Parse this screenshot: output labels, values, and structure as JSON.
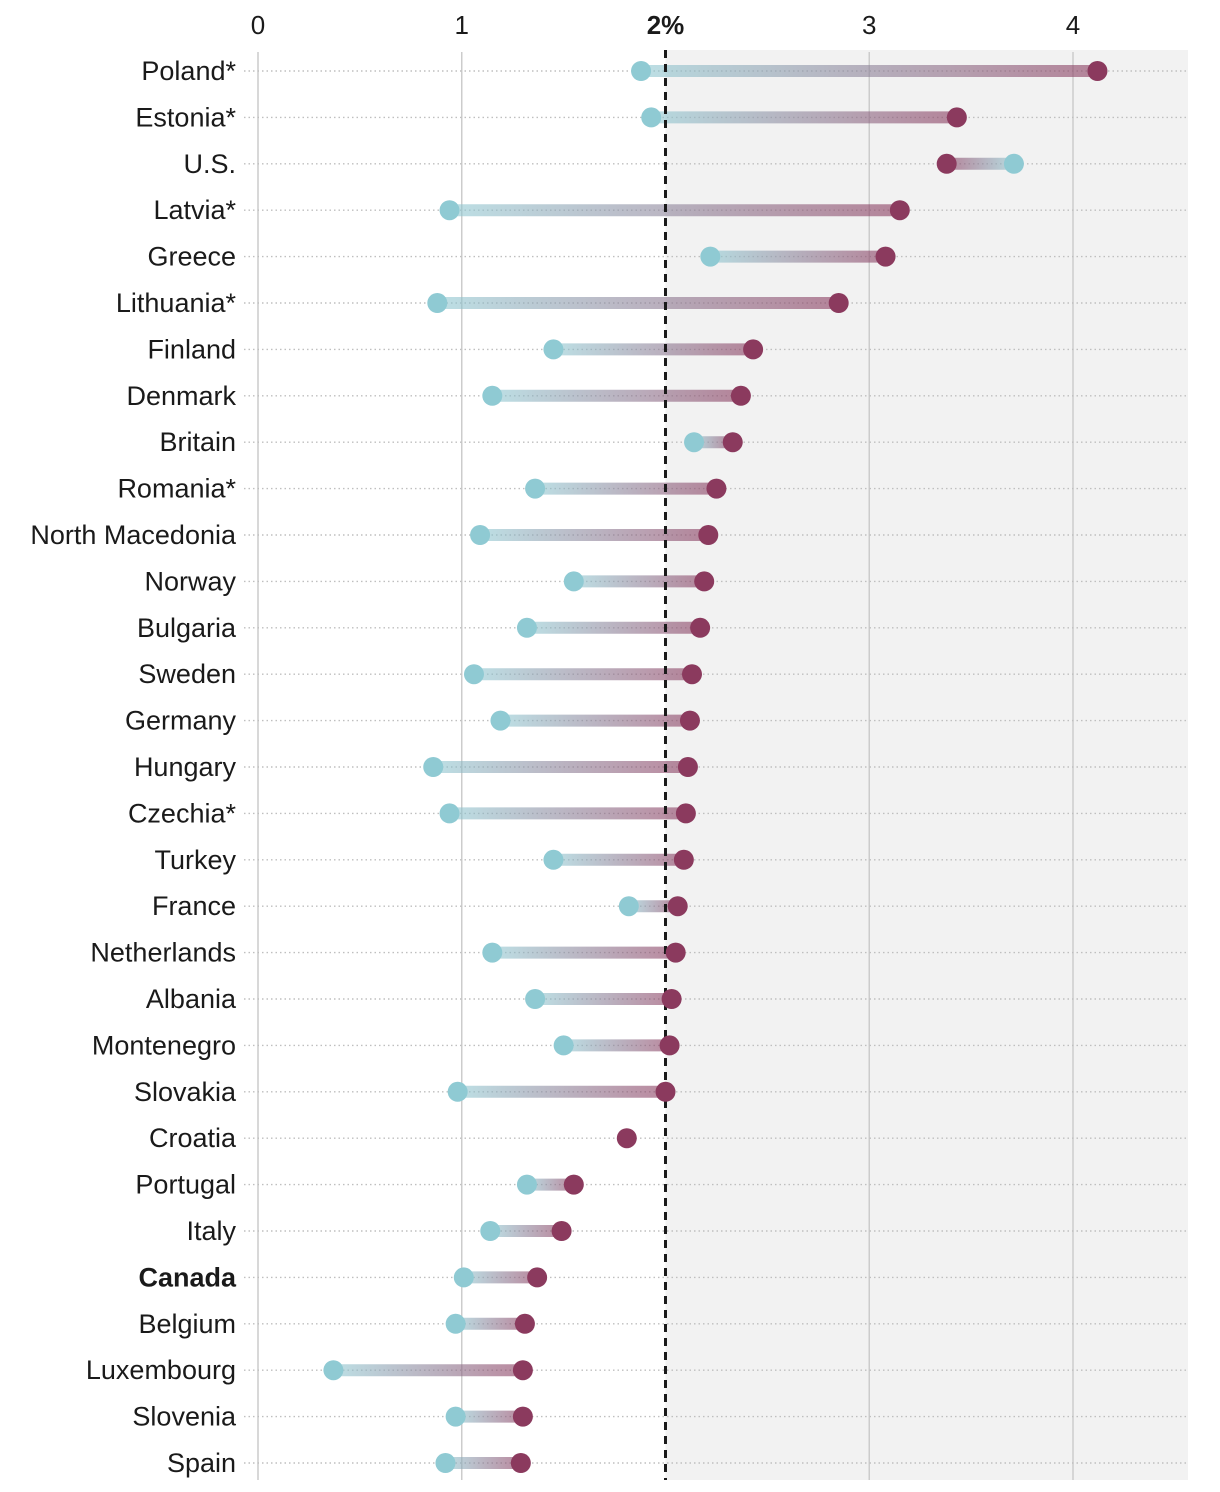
{
  "chart_data": {
    "type": "dumbbell",
    "xlim": [
      0,
      4.55
    ],
    "ticks": [
      {
        "value": 0,
        "label": "0",
        "bold": false
      },
      {
        "value": 1,
        "label": "1",
        "bold": false
      },
      {
        "value": 2,
        "label": "2%",
        "bold": true
      },
      {
        "value": 3,
        "label": "3",
        "bold": false
      },
      {
        "value": 4,
        "label": "4",
        "bold": false
      }
    ],
    "threshold": 2,
    "colors": {
      "start": "#8fcad3",
      "end": "#8b3a5e",
      "shade": "#f2f2f2",
      "grid": "#cccccc",
      "dotted": "#bfbfbf",
      "threshold": "#1a1a1a"
    },
    "series": [
      {
        "name": "start",
        "color": "#8fcad3"
      },
      {
        "name": "end",
        "color": "#8b3a5e"
      }
    ],
    "countries": [
      {
        "name": "Poland*",
        "start": 1.88,
        "end": 4.12,
        "bold": false
      },
      {
        "name": "Estonia*",
        "start": 1.93,
        "end": 3.43,
        "bold": false
      },
      {
        "name": "U.S.",
        "start": 3.71,
        "end": 3.38,
        "bold": false
      },
      {
        "name": "Latvia*",
        "start": 0.94,
        "end": 3.15,
        "bold": false
      },
      {
        "name": "Greece",
        "start": 2.22,
        "end": 3.08,
        "bold": false
      },
      {
        "name": "Lithuania*",
        "start": 0.88,
        "end": 2.85,
        "bold": false
      },
      {
        "name": "Finland",
        "start": 1.45,
        "end": 2.43,
        "bold": false
      },
      {
        "name": "Denmark",
        "start": 1.15,
        "end": 2.37,
        "bold": false
      },
      {
        "name": "Britain",
        "start": 2.14,
        "end": 2.33,
        "bold": false
      },
      {
        "name": "Romania*",
        "start": 1.36,
        "end": 2.25,
        "bold": false
      },
      {
        "name": "North Macedonia",
        "start": 1.09,
        "end": 2.21,
        "bold": false
      },
      {
        "name": "Norway",
        "start": 1.55,
        "end": 2.19,
        "bold": false
      },
      {
        "name": "Bulgaria",
        "start": 1.32,
        "end": 2.17,
        "bold": false
      },
      {
        "name": "Sweden",
        "start": 1.06,
        "end": 2.13,
        "bold": false
      },
      {
        "name": "Germany",
        "start": 1.19,
        "end": 2.12,
        "bold": false
      },
      {
        "name": "Hungary",
        "start": 0.86,
        "end": 2.11,
        "bold": false
      },
      {
        "name": "Czechia*",
        "start": 0.94,
        "end": 2.1,
        "bold": false
      },
      {
        "name": "Turkey",
        "start": 1.45,
        "end": 2.09,
        "bold": false
      },
      {
        "name": "France",
        "start": 1.82,
        "end": 2.06,
        "bold": false
      },
      {
        "name": "Netherlands",
        "start": 1.15,
        "end": 2.05,
        "bold": false
      },
      {
        "name": "Albania",
        "start": 1.36,
        "end": 2.03,
        "bold": false
      },
      {
        "name": "Montenegro",
        "start": 1.5,
        "end": 2.02,
        "bold": false
      },
      {
        "name": "Slovakia",
        "start": 0.98,
        "end": 2.0,
        "bold": false
      },
      {
        "name": "Croatia",
        "start": null,
        "end": 1.81,
        "bold": false
      },
      {
        "name": "Portugal",
        "start": 1.32,
        "end": 1.55,
        "bold": false
      },
      {
        "name": "Italy",
        "start": 1.14,
        "end": 1.49,
        "bold": false
      },
      {
        "name": "Canada",
        "start": 1.01,
        "end": 1.37,
        "bold": true
      },
      {
        "name": "Belgium",
        "start": 0.97,
        "end": 1.31,
        "bold": false
      },
      {
        "name": "Luxembourg",
        "start": 0.37,
        "end": 1.3,
        "bold": false
      },
      {
        "name": "Slovenia",
        "start": 0.97,
        "end": 1.3,
        "bold": false
      },
      {
        "name": "Spain",
        "start": 0.92,
        "end": 1.29,
        "bold": false
      }
    ]
  }
}
